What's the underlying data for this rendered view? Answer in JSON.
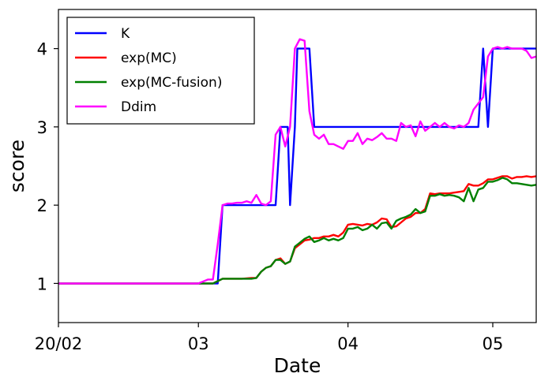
{
  "chart_data": {
    "type": "line",
    "xlabel": "Date",
    "ylabel": "score",
    "x_ticks": [
      {
        "value": 0,
        "label": "20/02"
      },
      {
        "value": 29,
        "label": "03"
      },
      {
        "value": 60,
        "label": "04"
      },
      {
        "value": 90,
        "label": "05"
      }
    ],
    "y_ticks": [
      1,
      2,
      3,
      4
    ],
    "xlim": [
      0,
      99
    ],
    "ylim": [
      0.5,
      4.5
    ],
    "grid": false,
    "legend_position": "top-left",
    "series": [
      {
        "name": "K",
        "color": "#0000ff",
        "points": [
          [
            0,
            1
          ],
          [
            10,
            1
          ],
          [
            20,
            1
          ],
          [
            29,
            1
          ],
          [
            33,
            1
          ],
          [
            34,
            2
          ],
          [
            36,
            2
          ],
          [
            40,
            2
          ],
          [
            44,
            2
          ],
          [
            45,
            2
          ],
          [
            46,
            3
          ],
          [
            47,
            3
          ],
          [
            47.5,
            3
          ],
          [
            48,
            2
          ],
          [
            49,
            3
          ],
          [
            49.5,
            4
          ],
          [
            51,
            4
          ],
          [
            52,
            4
          ],
          [
            53,
            3
          ],
          [
            55,
            3
          ],
          [
            60,
            3
          ],
          [
            65,
            3
          ],
          [
            70,
            3
          ],
          [
            75,
            3
          ],
          [
            80,
            3
          ],
          [
            85,
            3
          ],
          [
            87,
            3
          ],
          [
            88,
            4
          ],
          [
            89,
            3
          ],
          [
            90,
            4
          ],
          [
            95,
            4
          ],
          [
            99,
            4
          ]
        ]
      },
      {
        "name": "exp(MC)",
        "color": "#ff0000",
        "points": [
          [
            0,
            1
          ],
          [
            10,
            1
          ],
          [
            20,
            1
          ],
          [
            30,
            1
          ],
          [
            32,
            1
          ],
          [
            34,
            1.06
          ],
          [
            36,
            1.06
          ],
          [
            38,
            1.06
          ],
          [
            40,
            1.07
          ],
          [
            41,
            1.07
          ],
          [
            42,
            1.15
          ],
          [
            43,
            1.2
          ],
          [
            44,
            1.22
          ],
          [
            45,
            1.3
          ],
          [
            46,
            1.32
          ],
          [
            47,
            1.25
          ],
          [
            48,
            1.28
          ],
          [
            49,
            1.45
          ],
          [
            50,
            1.5
          ],
          [
            51,
            1.55
          ],
          [
            52,
            1.56
          ],
          [
            53,
            1.58
          ],
          [
            54,
            1.58
          ],
          [
            55,
            1.6
          ],
          [
            56,
            1.6
          ],
          [
            57,
            1.62
          ],
          [
            58,
            1.6
          ],
          [
            59,
            1.65
          ],
          [
            60,
            1.75
          ],
          [
            61,
            1.76
          ],
          [
            62,
            1.75
          ],
          [
            63,
            1.74
          ],
          [
            64,
            1.76
          ],
          [
            65,
            1.75
          ],
          [
            66,
            1.78
          ],
          [
            67,
            1.83
          ],
          [
            68,
            1.82
          ],
          [
            69,
            1.72
          ],
          [
            70,
            1.73
          ],
          [
            71,
            1.78
          ],
          [
            72,
            1.83
          ],
          [
            73,
            1.85
          ],
          [
            74,
            1.9
          ],
          [
            75,
            1.9
          ],
          [
            76,
            1.95
          ],
          [
            77,
            2.15
          ],
          [
            78,
            2.14
          ],
          [
            79,
            2.15
          ],
          [
            80,
            2.15
          ],
          [
            81,
            2.15
          ],
          [
            82,
            2.16
          ],
          [
            83,
            2.17
          ],
          [
            84,
            2.18
          ],
          [
            85,
            2.27
          ],
          [
            86,
            2.25
          ],
          [
            87,
            2.25
          ],
          [
            88,
            2.28
          ],
          [
            89,
            2.33
          ],
          [
            90,
            2.33
          ],
          [
            91,
            2.35
          ],
          [
            92,
            2.37
          ],
          [
            93,
            2.37
          ],
          [
            94,
            2.34
          ],
          [
            95,
            2.36
          ],
          [
            96,
            2.36
          ],
          [
            97,
            2.37
          ],
          [
            98,
            2.36
          ],
          [
            99,
            2.37
          ]
        ]
      },
      {
        "name": "exp(MC-fusion)",
        "color": "#008000",
        "points": [
          [
            0,
            1
          ],
          [
            10,
            1
          ],
          [
            20,
            1
          ],
          [
            30,
            1
          ],
          [
            32,
            1
          ],
          [
            34,
            1.06
          ],
          [
            36,
            1.06
          ],
          [
            38,
            1.06
          ],
          [
            40,
            1.06
          ],
          [
            41,
            1.07
          ],
          [
            42,
            1.15
          ],
          [
            43,
            1.2
          ],
          [
            44,
            1.22
          ],
          [
            45,
            1.3
          ],
          [
            46,
            1.3
          ],
          [
            47,
            1.25
          ],
          [
            48,
            1.28
          ],
          [
            49,
            1.47
          ],
          [
            50,
            1.52
          ],
          [
            51,
            1.57
          ],
          [
            52,
            1.6
          ],
          [
            53,
            1.53
          ],
          [
            54,
            1.55
          ],
          [
            55,
            1.58
          ],
          [
            56,
            1.55
          ],
          [
            57,
            1.57
          ],
          [
            58,
            1.55
          ],
          [
            59,
            1.58
          ],
          [
            60,
            1.7
          ],
          [
            61,
            1.7
          ],
          [
            62,
            1.72
          ],
          [
            63,
            1.68
          ],
          [
            64,
            1.7
          ],
          [
            65,
            1.75
          ],
          [
            66,
            1.7
          ],
          [
            67,
            1.77
          ],
          [
            68,
            1.78
          ],
          [
            69,
            1.7
          ],
          [
            70,
            1.8
          ],
          [
            71,
            1.83
          ],
          [
            72,
            1.85
          ],
          [
            73,
            1.88
          ],
          [
            74,
            1.95
          ],
          [
            75,
            1.9
          ],
          [
            76,
            1.92
          ],
          [
            77,
            2.12
          ],
          [
            78,
            2.12
          ],
          [
            79,
            2.14
          ],
          [
            80,
            2.12
          ],
          [
            81,
            2.13
          ],
          [
            82,
            2.12
          ],
          [
            83,
            2.1
          ],
          [
            84,
            2.05
          ],
          [
            85,
            2.22
          ],
          [
            86,
            2.05
          ],
          [
            87,
            2.2
          ],
          [
            88,
            2.22
          ],
          [
            89,
            2.3
          ],
          [
            90,
            2.3
          ],
          [
            91,
            2.32
          ],
          [
            92,
            2.35
          ],
          [
            93,
            2.33
          ],
          [
            94,
            2.28
          ],
          [
            95,
            2.28
          ],
          [
            96,
            2.27
          ],
          [
            97,
            2.26
          ],
          [
            98,
            2.25
          ],
          [
            99,
            2.26
          ]
        ]
      },
      {
        "name": "Ddim",
        "color": "#ff00ff",
        "points": [
          [
            0,
            1
          ],
          [
            10,
            1
          ],
          [
            20,
            1
          ],
          [
            29,
            1
          ],
          [
            31,
            1.05
          ],
          [
            32,
            1.05
          ],
          [
            33,
            1.5
          ],
          [
            34,
            2
          ],
          [
            35,
            2.02
          ],
          [
            36,
            2.02
          ],
          [
            37,
            2.03
          ],
          [
            38,
            2.03
          ],
          [
            39,
            2.05
          ],
          [
            40,
            2.03
          ],
          [
            41,
            2.13
          ],
          [
            42,
            2.02
          ],
          [
            43,
            2.0
          ],
          [
            44,
            2.05
          ],
          [
            45,
            2.9
          ],
          [
            46,
            3.0
          ],
          [
            47,
            2.75
          ],
          [
            48,
            3.0
          ],
          [
            49,
            4.0
          ],
          [
            50,
            4.12
          ],
          [
            51,
            4.1
          ],
          [
            52,
            3.2
          ],
          [
            53,
            2.9
          ],
          [
            54,
            2.85
          ],
          [
            55,
            2.9
          ],
          [
            56,
            2.78
          ],
          [
            57,
            2.78
          ],
          [
            58,
            2.75
          ],
          [
            59,
            2.72
          ],
          [
            60,
            2.82
          ],
          [
            61,
            2.82
          ],
          [
            62,
            2.92
          ],
          [
            63,
            2.78
          ],
          [
            64,
            2.85
          ],
          [
            65,
            2.83
          ],
          [
            66,
            2.87
          ],
          [
            67,
            2.92
          ],
          [
            68,
            2.85
          ],
          [
            69,
            2.85
          ],
          [
            70,
            2.82
          ],
          [
            71,
            3.05
          ],
          [
            72,
            3.0
          ],
          [
            73,
            3.02
          ],
          [
            74,
            2.88
          ],
          [
            75,
            3.07
          ],
          [
            76,
            2.95
          ],
          [
            77,
            3.0
          ],
          [
            78,
            3.05
          ],
          [
            79,
            3.0
          ],
          [
            80,
            3.05
          ],
          [
            81,
            3.0
          ],
          [
            82,
            2.98
          ],
          [
            83,
            3.02
          ],
          [
            84,
            3.0
          ],
          [
            85,
            3.05
          ],
          [
            86,
            3.22
          ],
          [
            87,
            3.3
          ],
          [
            88,
            3.38
          ],
          [
            89,
            3.9
          ],
          [
            90,
            4.0
          ],
          [
            91,
            4.02
          ],
          [
            92,
            4.0
          ],
          [
            93,
            4.02
          ],
          [
            94,
            4.0
          ],
          [
            95,
            4.0
          ],
          [
            96,
            4.0
          ],
          [
            97,
            3.97
          ],
          [
            98,
            3.88
          ],
          [
            99,
            3.9
          ]
        ]
      }
    ]
  }
}
